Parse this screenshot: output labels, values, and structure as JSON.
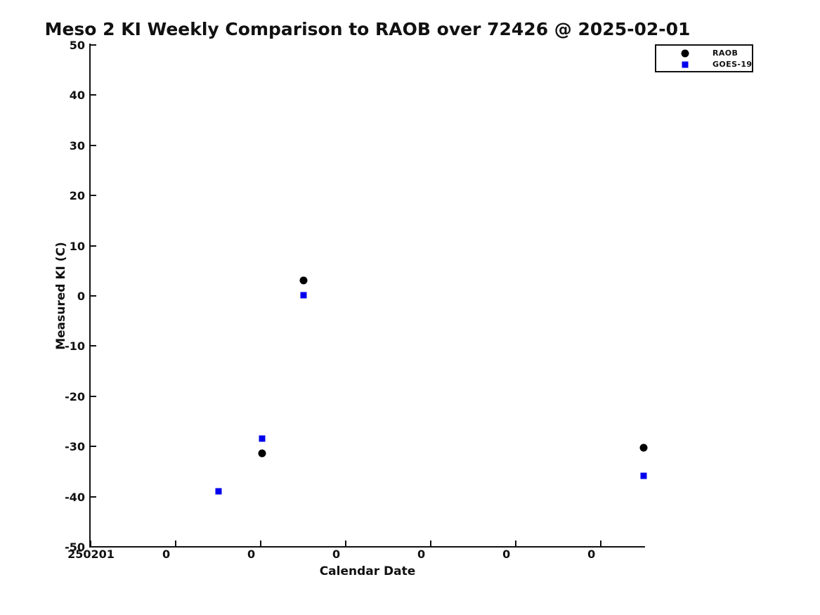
{
  "figure": {
    "background": "#ffffff",
    "accent_black": "#000000",
    "accent_blue": "#0000ee"
  },
  "legend": {
    "position": "top-right",
    "items": [
      {
        "label": "RAOB",
        "marker": "circle",
        "color": "#000000"
      },
      {
        "label": "GOES-19",
        "marker": "square",
        "color": "#0000ee"
      }
    ]
  },
  "chart_data": {
    "type": "scatter",
    "title": "Meso 2 KI Weekly Comparison to RAOB over 72426 @ 2025-02-01",
    "xlabel": "Calendar Date",
    "ylabel": "Measured KI (C)",
    "x_unit": "days since 250201",
    "xlim": [
      0,
      6.515
    ],
    "ylim": [
      -50,
      50
    ],
    "grid": false,
    "legend_position": "top-right-outside-plot",
    "xticks": [
      {
        "x": 0,
        "label": "250201"
      },
      {
        "x": 1,
        "label": "0"
      },
      {
        "x": 2,
        "label": "0"
      },
      {
        "x": 3,
        "label": "0"
      },
      {
        "x": 4,
        "label": "0"
      },
      {
        "x": 5,
        "label": "0"
      },
      {
        "x": 6,
        "label": "0"
      }
    ],
    "yticks": [
      50,
      40,
      30,
      20,
      10,
      0,
      -10,
      -20,
      -30,
      -40,
      -50
    ],
    "series": [
      {
        "name": "RAOB",
        "marker": "circle",
        "color": "#000000",
        "marker_size_px": 11,
        "points": [
          {
            "x": 2.02,
            "y": -31.4
          },
          {
            "x": 2.51,
            "y": 3.1
          },
          {
            "x": 6.51,
            "y": -30.3
          }
        ]
      },
      {
        "name": "GOES-19",
        "marker": "square",
        "color": "#0000ee",
        "marker_size_px": 9,
        "points": [
          {
            "x": 1.51,
            "y": -38.9
          },
          {
            "x": 2.02,
            "y": -28.5
          },
          {
            "x": 2.51,
            "y": 0.1
          },
          {
            "x": 6.51,
            "y": -35.9
          }
        ]
      }
    ]
  }
}
